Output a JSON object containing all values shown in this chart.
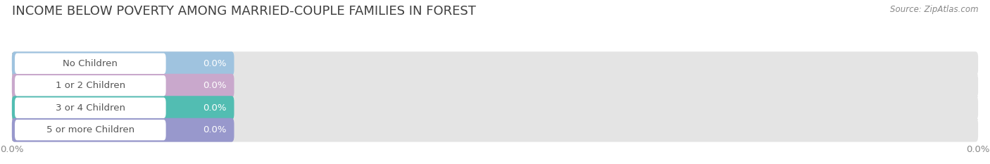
{
  "title": "INCOME BELOW POVERTY AMONG MARRIED-COUPLE FAMILIES IN FOREST",
  "source": "Source: ZipAtlas.com",
  "categories": [
    "No Children",
    "1 or 2 Children",
    "3 or 4 Children",
    "5 or more Children"
  ],
  "values": [
    0.0,
    0.0,
    0.0,
    0.0
  ],
  "bar_colors": [
    "#9fc3df",
    "#c9a8cc",
    "#52bdb2",
    "#9898cc"
  ],
  "bar_bg_color": "#e4e4e4",
  "background_color": "#ffffff",
  "title_fontsize": 13,
  "tick_fontsize": 9.5,
  "source_fontsize": 8.5,
  "label_fontsize": 9.5,
  "value_fontsize": 9.5,
  "fig_width": 14.06,
  "fig_height": 2.33,
  "dpi": 100
}
